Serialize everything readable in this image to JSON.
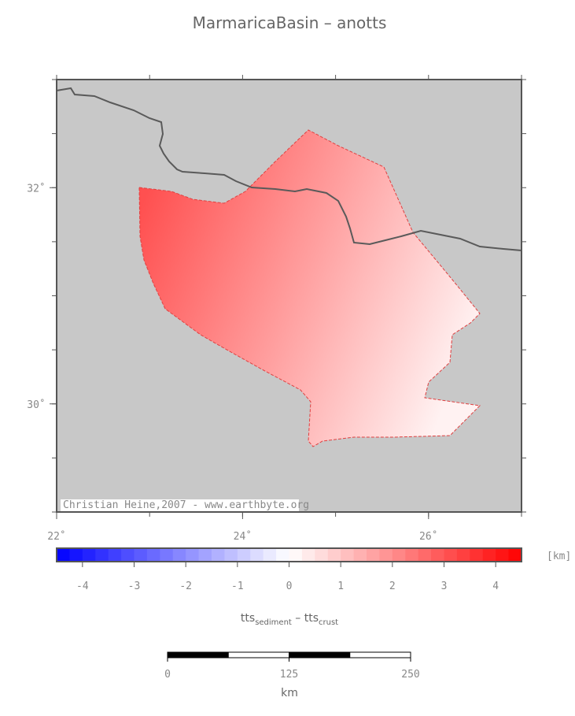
{
  "map": {
    "title": "MarmaricaBasin – anotts",
    "xlim": [
      22,
      27
    ],
    "ylim": [
      29,
      33
    ],
    "xticks": [
      {
        "value": 22,
        "label": "22˚"
      },
      {
        "value": 24,
        "label": "24˚"
      },
      {
        "value": 26,
        "label": "26˚"
      }
    ],
    "yticks": [
      {
        "value": 30,
        "label": "30˚"
      },
      {
        "value": 32,
        "label": "32˚"
      }
    ],
    "credit": "Christian Heine,2007 - www.earthbyte.org"
  },
  "colorbar": {
    "lim": [
      -4.5,
      4.5
    ],
    "ticks": [
      -4,
      -3,
      -2,
      -1,
      0,
      1,
      2,
      3,
      4
    ],
    "unit": "[km]",
    "label": [
      "tts",
      "sediment",
      " – tts",
      "crust"
    ]
  },
  "scalebar": {
    "ticks": [
      0,
      125,
      250
    ],
    "unit": "km"
  }
}
